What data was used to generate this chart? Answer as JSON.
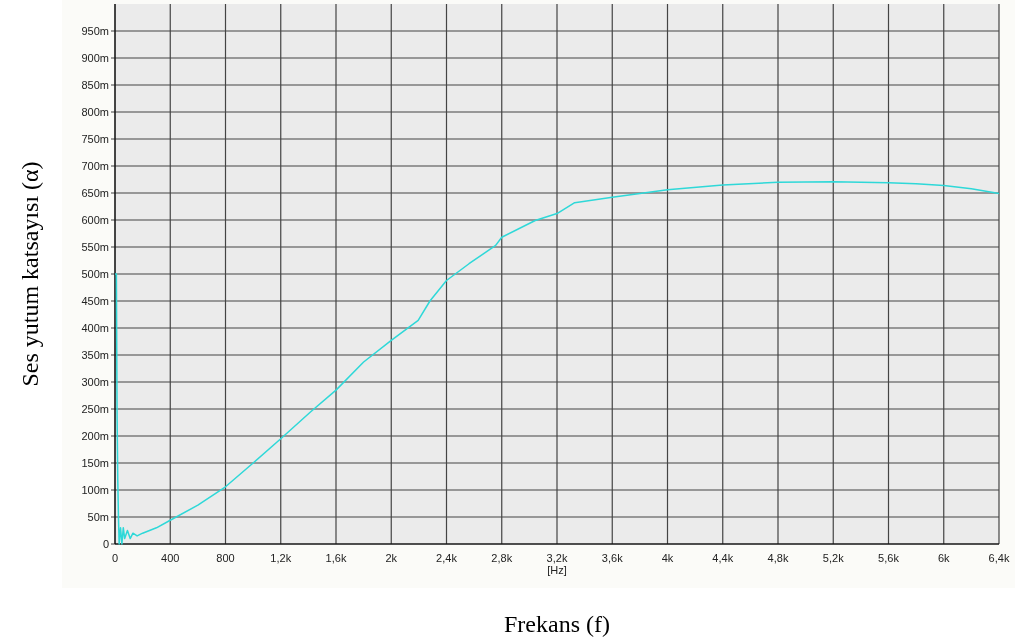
{
  "chart_data": {
    "type": "line",
    "xlabel": "Frekans (f)",
    "ylabel": "Ses yutum katsayısı (α)",
    "annotations": [
      "[Hz]"
    ],
    "grid": true,
    "xlim": [
      0,
      6400
    ],
    "ylim": [
      0,
      1000
    ],
    "xticks": [
      0,
      400,
      800,
      {
        "value": 1200,
        "label": "1,2k"
      },
      {
        "value": 1600,
        "label": "1,6k"
      },
      {
        "value": 2000,
        "label": "2k"
      },
      {
        "value": 2400,
        "label": "2,4k"
      },
      {
        "value": 2800,
        "label": "2,8k"
      },
      {
        "value": 3200,
        "label": "3,2k"
      },
      {
        "value": 3600,
        "label": "3,6k"
      },
      {
        "value": 4000,
        "label": "4k"
      },
      {
        "value": 4400,
        "label": "4,4k"
      },
      {
        "value": 4800,
        "label": "4,8k"
      },
      {
        "value": 5200,
        "label": "5,2k"
      },
      {
        "value": 5600,
        "label": "5,6k"
      },
      {
        "value": 6000,
        "label": "6k"
      },
      {
        "value": 6400,
        "label": "6,4k"
      }
    ],
    "yticks": [
      0,
      {
        "value": 50,
        "label": "50m"
      },
      {
        "value": 100,
        "label": "100m"
      },
      {
        "value": 150,
        "label": "150m"
      },
      {
        "value": 200,
        "label": "200m"
      },
      {
        "value": 250,
        "label": "250m"
      },
      {
        "value": 300,
        "label": "300m"
      },
      {
        "value": 350,
        "label": "350m"
      },
      {
        "value": 400,
        "label": "400m"
      },
      {
        "value": 450,
        "label": "450m"
      },
      {
        "value": 500,
        "label": "500m"
      },
      {
        "value": 550,
        "label": "550m"
      },
      {
        "value": 600,
        "label": "600m"
      },
      {
        "value": 650,
        "label": "650m"
      },
      {
        "value": 700,
        "label": "700m"
      },
      {
        "value": 750,
        "label": "750m"
      },
      {
        "value": 800,
        "label": "800m"
      },
      {
        "value": 850,
        "label": "850m"
      },
      {
        "value": 900,
        "label": "900m"
      },
      {
        "value": 950,
        "label": "950m"
      }
    ],
    "series": [
      {
        "color": "#2ed8d8",
        "x": [
          0,
          10,
          15,
          20,
          25,
          30,
          40,
          50,
          60,
          70,
          90,
          110,
          130,
          160,
          200,
          300,
          400,
          600,
          800,
          1000,
          1200,
          1417,
          1600,
          1800,
          2000,
          2195,
          2280,
          2400,
          2563,
          2756,
          2800,
          3042,
          3200,
          3328,
          3600,
          3800,
          4000,
          4400,
          4800,
          5200,
          5600,
          5800,
          6000,
          6200,
          6400
        ],
        "values": [
          500,
          500,
          240,
          120,
          50,
          0,
          30,
          0,
          30,
          10,
          25,
          10,
          20,
          15,
          20,
          30,
          44,
          72,
          106,
          150,
          195,
          245,
          285,
          337,
          377,
          414,
          450,
          488,
          519,
          553,
          568,
          599,
          612,
          632,
          642,
          649,
          656,
          665,
          670,
          671,
          669,
          667,
          664,
          658,
          649
        ]
      }
    ]
  }
}
